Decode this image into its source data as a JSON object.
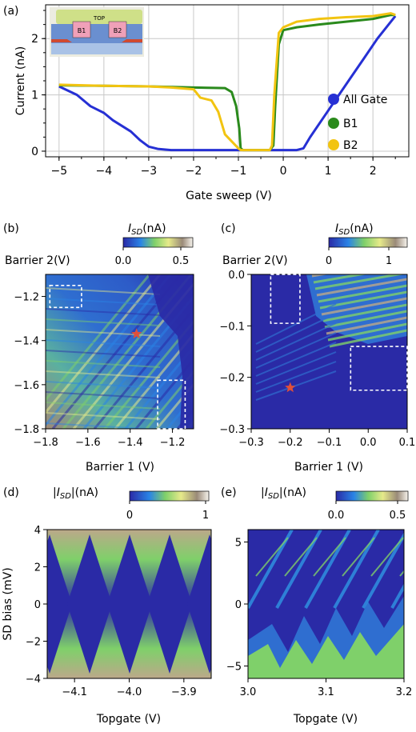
{
  "chart_data": [
    {
      "panel_label": "(a)",
      "type": "line",
      "xlabel": "Gate sweep (V)",
      "ylabel": "Current (nA)",
      "xlim": [
        -5.3,
        2.8
      ],
      "ylim": [
        -0.1,
        2.6
      ],
      "xticks": [
        -5,
        -4,
        -3,
        -2,
        -1,
        0,
        1,
        2
      ],
      "yticks": [
        0,
        1,
        2
      ],
      "grid": true,
      "legend_position": "lower-right",
      "inset_labels": [
        "TOP",
        "B1",
        "B2"
      ],
      "series": [
        {
          "name": "All Gate",
          "color": "#2630d4",
          "x": [
            -5.0,
            -4.6,
            -4.3,
            -4.0,
            -3.8,
            -3.6,
            -3.4,
            -3.2,
            -3.0,
            -2.8,
            -2.5,
            -2.0,
            -1.0,
            0.0,
            0.3,
            0.45,
            0.6,
            0.9,
            1.2,
            1.5,
            1.8,
            2.1,
            2.4,
            2.5
          ],
          "y": [
            1.15,
            1.0,
            0.8,
            0.68,
            0.55,
            0.45,
            0.35,
            0.2,
            0.08,
            0.04,
            0.02,
            0.02,
            0.02,
            0.02,
            0.02,
            0.05,
            0.25,
            0.6,
            0.95,
            1.3,
            1.65,
            2.0,
            2.3,
            2.4
          ]
        },
        {
          "name": "B1",
          "color": "#2a8a1c",
          "x": [
            -5.0,
            -4.0,
            -3.0,
            -2.0,
            -1.3,
            -1.15,
            -1.05,
            -0.98,
            -0.95,
            -0.9,
            -0.3,
            -0.22,
            -0.18,
            -0.1,
            0.0,
            0.3,
            0.8,
            1.4,
            2.0,
            2.4,
            2.5
          ],
          "y": [
            1.17,
            1.16,
            1.15,
            1.13,
            1.12,
            1.05,
            0.8,
            0.4,
            0.05,
            0.02,
            0.02,
            0.1,
            0.8,
            1.9,
            2.15,
            2.2,
            2.25,
            2.3,
            2.35,
            2.42,
            2.42
          ]
        },
        {
          "name": "B2",
          "color": "#f2c411",
          "x": [
            -5.0,
            -4.0,
            -3.0,
            -2.5,
            -2.0,
            -1.85,
            -1.6,
            -1.45,
            -1.3,
            -1.0,
            -0.95,
            -0.9,
            -0.3,
            -0.25,
            -0.2,
            -0.1,
            0.0,
            0.3,
            0.8,
            1.4,
            2.0,
            2.4,
            2.5
          ],
          "y": [
            1.18,
            1.16,
            1.15,
            1.13,
            1.1,
            0.95,
            0.9,
            0.7,
            0.3,
            0.05,
            0.02,
            0.02,
            0.02,
            0.1,
            1.0,
            2.1,
            2.2,
            2.3,
            2.35,
            2.38,
            2.4,
            2.45,
            2.42
          ]
        }
      ]
    },
    {
      "panel_label": "(b)",
      "type": "heatmap",
      "colorbar_label": "I_SD(nA)",
      "colorbar_ticks": [
        "0.0",
        "0.5"
      ],
      "colorbar_range": [
        0,
        0.6
      ],
      "xlabel": "Barrier 1 (V)",
      "ylabel": "Barrier 2(V)",
      "xlim": [
        -1.8,
        -1.1
      ],
      "ylim": [
        -1.8,
        -1.1
      ],
      "xticks": [
        "−1.8",
        "−1.6",
        "−1.4",
        "−1.2"
      ],
      "yticks": [
        "−1.2",
        "−1.4",
        "−1.6",
        "−1.8"
      ],
      "marker": {
        "type": "star",
        "color": "#e0503a",
        "x": -1.37,
        "y": -1.37
      },
      "dashed_boxes": [
        {
          "x": [
            -1.78,
            -1.63
          ],
          "y": [
            -1.25,
            -1.15
          ]
        },
        {
          "x": [
            -1.27,
            -1.14
          ],
          "y": [
            -1.8,
            -1.58
          ]
        }
      ]
    },
    {
      "panel_label": "(c)",
      "type": "heatmap",
      "colorbar_label": "I_SD(nA)",
      "colorbar_ticks": [
        "0",
        "1"
      ],
      "colorbar_range": [
        0,
        1.3
      ],
      "xlabel": "Barrier 1 (V)",
      "ylabel": "Barrier 2(V)",
      "xlim": [
        -0.3,
        0.1
      ],
      "ylim": [
        -0.3,
        0.0
      ],
      "xticks": [
        "−0.3",
        "−0.2",
        "−0.1",
        "0.0",
        "0.1"
      ],
      "yticks": [
        "0.0",
        "−0.1",
        "−0.2",
        "−0.3"
      ],
      "marker": {
        "type": "star",
        "color": "#e0503a",
        "x": -0.2,
        "y": -0.22
      },
      "dashed_boxes": [
        {
          "x": [
            -0.25,
            -0.175
          ],
          "y": [
            -0.095,
            0.0
          ]
        },
        {
          "x": [
            -0.045,
            0.1
          ],
          "y": [
            -0.225,
            -0.14
          ]
        }
      ]
    },
    {
      "panel_label": "(d)",
      "type": "heatmap",
      "colorbar_label": "|I_SD|(nA)",
      "colorbar_ticks": [
        "0",
        "1"
      ],
      "colorbar_range": [
        0,
        1.0
      ],
      "xlabel": "Topgate (V)",
      "ylabel": "SD bias (mV)",
      "xlim": [
        -4.15,
        -3.85
      ],
      "ylim": [
        -4,
        4
      ],
      "xticks": [
        "−4.1",
        "−4.0",
        "−3.9"
      ],
      "yticks": [
        "4",
        "2",
        "0",
        "−2",
        "−4"
      ]
    },
    {
      "panel_label": "(e)",
      "type": "heatmap",
      "colorbar_label": "|I_SD|(nA)",
      "colorbar_ticks": [
        "0.0",
        "0.5"
      ],
      "colorbar_range": [
        0,
        0.5
      ],
      "xlabel": "Topgate (V)",
      "ylabel": "",
      "xlim": [
        3.0,
        3.2
      ],
      "ylim": [
        -6,
        6
      ],
      "xticks": [
        "3.0",
        "3.1",
        "3.2"
      ],
      "yticks": [
        "5",
        "0",
        "−5"
      ]
    }
  ],
  "palette": {
    "deep_blue": "#2a2aa6",
    "mid_blue": "#2a84e6",
    "green": "#7fd06a",
    "yellow": "#e6ea8a",
    "tan": "#bca88a",
    "light": "#f3efe6"
  }
}
